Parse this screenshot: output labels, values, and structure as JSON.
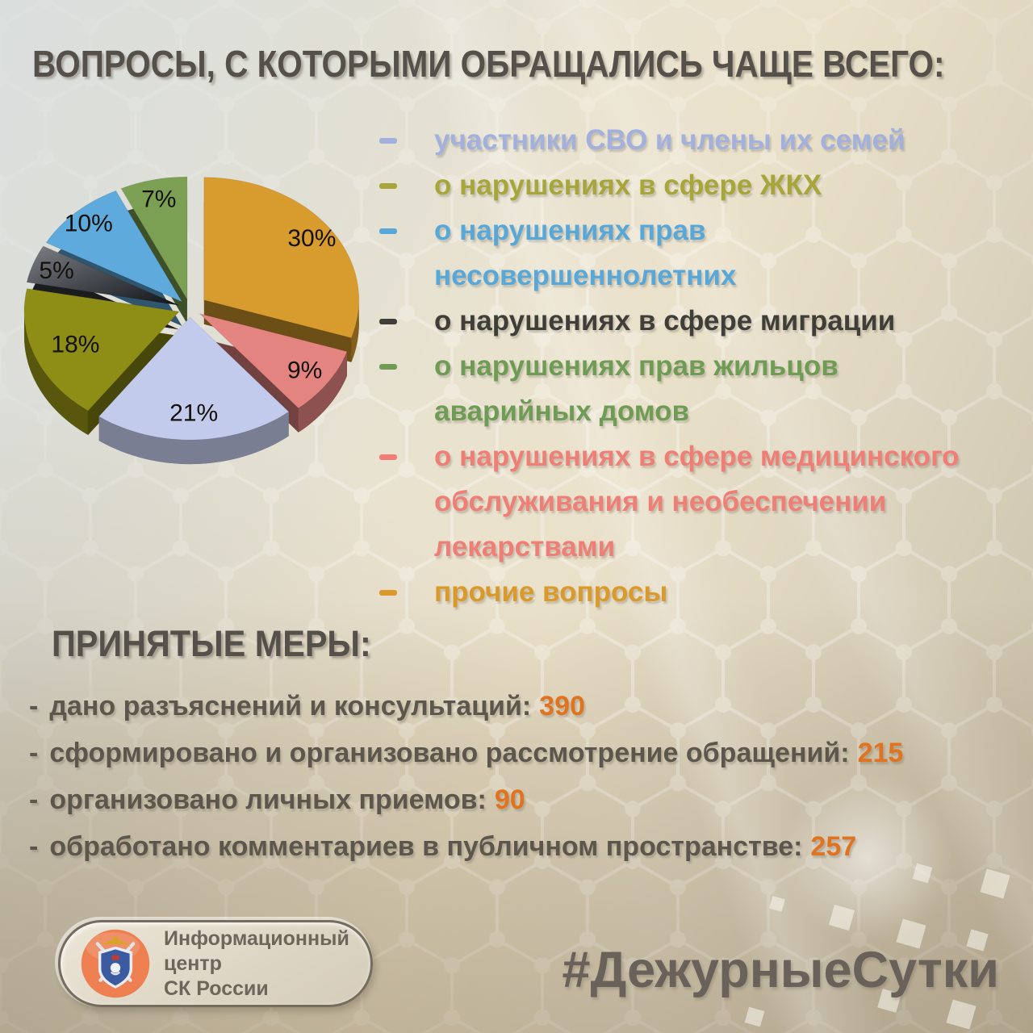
{
  "title": "ВОПРОСЫ, С КОТОРЫМИ ОБРАЩАЛИСЬ ЧАЩЕ ВСЕГО:",
  "chart_data": {
    "type": "pie",
    "style": "3d-exploded",
    "unit": "%",
    "order": "clockwise-from-top",
    "slices": [
      {
        "label": "прочие вопросы",
        "value": 30,
        "color": "#d79b2e"
      },
      {
        "label": "о нарушениях в сфере медицинского обслуживания и необеспечении лекарствами",
        "value": 9,
        "color": "#e48480"
      },
      {
        "label": "участники СВО и члены их семей",
        "value": 21,
        "color": "#c3cbed"
      },
      {
        "label": "о нарушениях в сфере ЖКХ",
        "value": 18,
        "color": "#8e8d15"
      },
      {
        "label": "о нарушениях в сфере миграции",
        "value": 5,
        "color": "#34383f",
        "gradient": [
          "#7c8086",
          "#101318"
        ]
      },
      {
        "label": "о нарушениях прав несовершеннолетних",
        "value": 10,
        "color": "#5faadc"
      },
      {
        "label": "о нарушениях прав жильцов аварийных домов",
        "value": 7,
        "color": "#7ca053"
      }
    ],
    "label_color": "#14110c"
  },
  "legend": {
    "items": [
      {
        "text": "участники СВО и члены их семей",
        "color": "#a2b0de"
      },
      {
        "text": "о нарушениях в сфере ЖКХ",
        "color": "#a6a63b"
      },
      {
        "text": "о нарушениях прав\nнесовершеннолетних",
        "color": "#57a8d9"
      },
      {
        "text": "о нарушениях в сфере миграции",
        "color": "#3f3e38"
      },
      {
        "text": "о нарушениях прав жильцов\nаварийных домов",
        "color": "#6f9c55"
      },
      {
        "text": "о нарушениях в сфере медицинского\nобслуживания и необеспечении\nлекарствами",
        "color": "#ef7e76"
      },
      {
        "text": "прочие вопросы",
        "color": "#d9992b"
      }
    ]
  },
  "measures": {
    "title": "ПРИНЯТЫЕ МЕРЫ:",
    "dash": "-",
    "value_color": "#e0731f",
    "items": [
      {
        "label": "дано разъяснений и консультаций:",
        "value": "390"
      },
      {
        "label": "сформировано и организовано рассмотрение обращений:",
        "value": "215"
      },
      {
        "label": "организовано личных приемов:",
        "value": "90"
      },
      {
        "label": "обработано комментариев в публичном пространстве:",
        "value": "257"
      }
    ]
  },
  "footer": {
    "logo": {
      "line1": "Информационный центр",
      "line2": "СК России",
      "emblem": {
        "circle": "#ed7f50",
        "circle_light": "#f4995f",
        "shield": "#3b5aa0",
        "shield_border": "#e9edf2",
        "swords": "#dfe3e8",
        "gold": "#d8a428",
        "red": "#c23a34"
      }
    },
    "hashtag": "#ДежурныеСутки"
  }
}
